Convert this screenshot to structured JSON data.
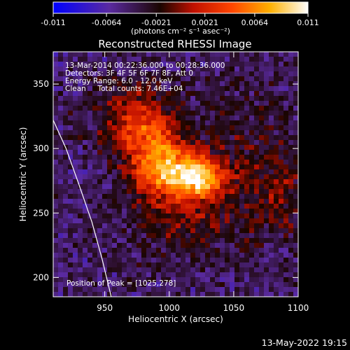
{
  "chart_data": {
    "type": "heatmap",
    "title": "Reconstructed RHESSI Image",
    "xlabel": "Heliocentric X (arcsec)",
    "ylabel": "Heliocentric Y (arcsec)",
    "xlim": [
      910,
      1100
    ],
    "ylim": [
      185,
      375
    ],
    "x_ticks": [
      950,
      1000,
      1050,
      1100
    ],
    "y_ticks": [
      200,
      250,
      300,
      350
    ],
    "colorbar": {
      "min": -0.011,
      "max": 0.011,
      "ticks": [
        -0.011,
        -0.0064,
        -0.0021,
        0.0021,
        0.0064,
        0.011
      ],
      "tick_labels": [
        "-0.011",
        "-0.0064",
        "-0.0021",
        "0.0021",
        "0.0064",
        "0.011"
      ],
      "unit_label": "(photons cm⁻² s⁻¹ asec⁻²)",
      "colormap": [
        "#0000ff",
        "#5a2aa0",
        "#2a0a00",
        "#c01000",
        "#ff4500",
        "#ffa500",
        "#ffff90",
        "#ffffff"
      ]
    },
    "annotations": {
      "time_range": "13-Mar-2014 00:22:36.000 to 00:28:36.000",
      "detectors": "Detectors: 3F 4F 5F 6F 7F 8F, Att 0",
      "energy_range": "Energy Range: 6.0 - 12.0 keV",
      "method": "Clean     Total counts: 7.46E+04",
      "peak": "Position of Peak = [1025,278]"
    },
    "peak_position": [
      1025,
      278
    ],
    "limb_curve": [
      [
        910,
        322
      ],
      [
        920,
        300
      ],
      [
        930,
        272
      ],
      [
        940,
        243
      ],
      [
        948,
        214
      ],
      [
        955,
        185
      ]
    ],
    "emission_sources": [
      {
        "x": 1025,
        "y": 278,
        "sx": 12,
        "sy": 10,
        "amp": 0.0105
      },
      {
        "x": 1000,
        "y": 282,
        "sx": 16,
        "sy": 14,
        "amp": 0.009
      },
      {
        "x": 985,
        "y": 305,
        "sx": 18,
        "sy": 20,
        "amp": 0.0065
      },
      {
        "x": 970,
        "y": 325,
        "sx": 22,
        "sy": 18,
        "amp": 0.004
      },
      {
        "x": 1010,
        "y": 250,
        "sx": 30,
        "sy": 22,
        "amp": 0.0035
      },
      {
        "x": 1060,
        "y": 290,
        "sx": 28,
        "sy": 40,
        "amp": 0.0025
      },
      {
        "x": 1090,
        "y": 265,
        "sx": 14,
        "sy": 22,
        "amp": 0.0025
      }
    ],
    "background_level": -0.0045
  },
  "footer": {
    "date_stamp": "13-May-2022 19:15"
  }
}
